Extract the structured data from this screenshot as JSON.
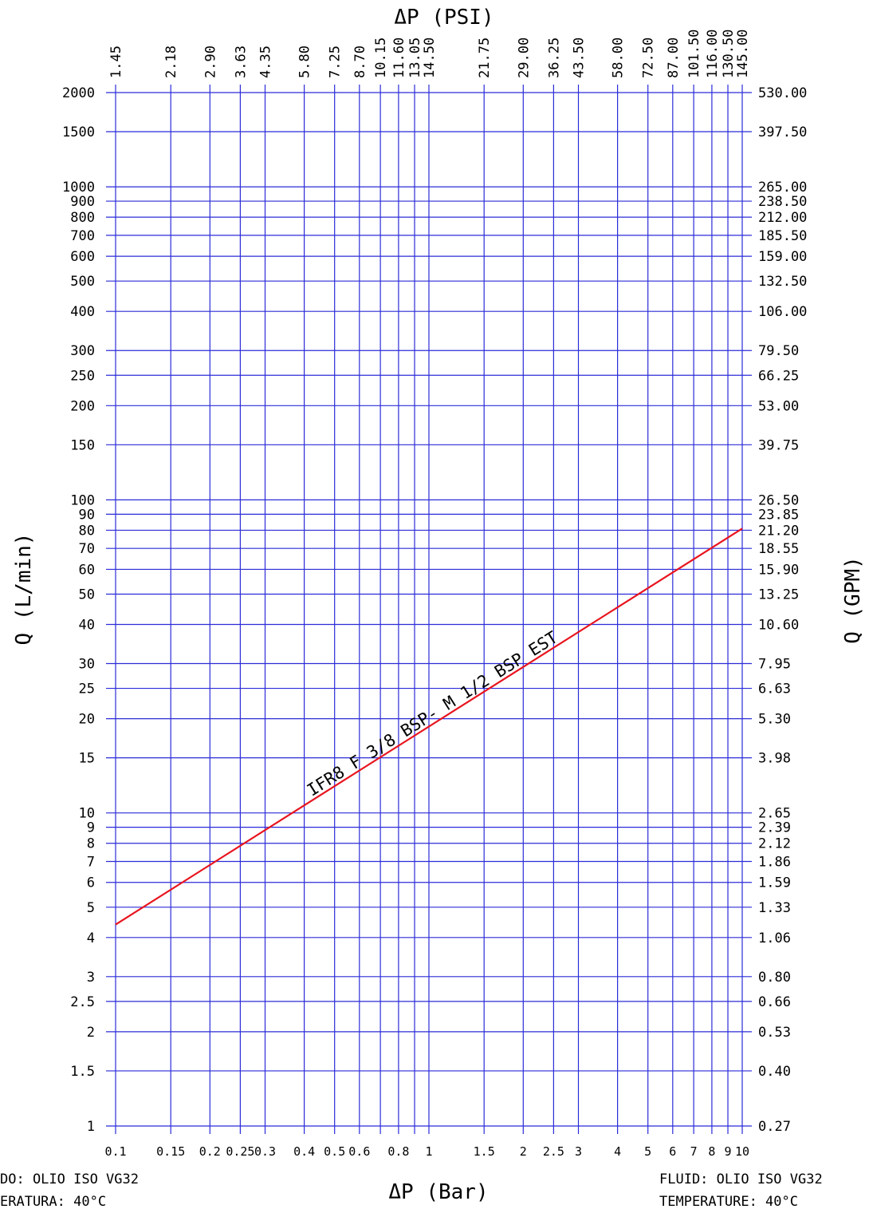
{
  "chart_data": {
    "type": "line",
    "title_top": "ΔP (PSI)",
    "xlabel": "ΔP (Bar)",
    "ylabel_left": "Q (L/min)",
    "ylabel_right": "Q (GPM)",
    "x_scale": "log",
    "y_scale": "log",
    "xlim": [
      0.1,
      10
    ],
    "ylim": [
      1,
      2000
    ],
    "grid": true,
    "colors": {
      "grid": "#2b2bd9",
      "axis": "#2b2bd9",
      "series": "#e8141e"
    },
    "x_ticks_bar": [
      {
        "v": 0.1,
        "label": "0.1"
      },
      {
        "v": 0.15,
        "label": "0.15"
      },
      {
        "v": 0.2,
        "label": "0.2"
      },
      {
        "v": 0.25,
        "label": "0.25"
      },
      {
        "v": 0.3,
        "label": "0.3"
      },
      {
        "v": 0.4,
        "label": "0.4"
      },
      {
        "v": 0.5,
        "label": "0.5"
      },
      {
        "v": 0.6,
        "label": "0.6"
      },
      {
        "v": 0.7,
        "label": ""
      },
      {
        "v": 0.8,
        "label": "0.8"
      },
      {
        "v": 0.9,
        "label": ""
      },
      {
        "v": 1,
        "label": "1"
      },
      {
        "v": 1.5,
        "label": "1.5"
      },
      {
        "v": 2,
        "label": "2"
      },
      {
        "v": 2.5,
        "label": "2.5"
      },
      {
        "v": 3,
        "label": "3"
      },
      {
        "v": 4,
        "label": "4"
      },
      {
        "v": 5,
        "label": "5"
      },
      {
        "v": 6,
        "label": "6"
      },
      {
        "v": 7,
        "label": "7"
      },
      {
        "v": 8,
        "label": "8"
      },
      {
        "v": 9,
        "label": "9"
      },
      {
        "v": 10,
        "label": "10"
      }
    ],
    "x_ticks_psi": [
      {
        "v": 0.1,
        "label": "1.45"
      },
      {
        "v": 0.15,
        "label": "2.18"
      },
      {
        "v": 0.2,
        "label": "2.90"
      },
      {
        "v": 0.25,
        "label": "3.63"
      },
      {
        "v": 0.3,
        "label": "4.35"
      },
      {
        "v": 0.4,
        "label": "5.80"
      },
      {
        "v": 0.5,
        "label": "7.25"
      },
      {
        "v": 0.6,
        "label": "8.70"
      },
      {
        "v": 0.7,
        "label": "10.15"
      },
      {
        "v": 0.8,
        "label": "11.60"
      },
      {
        "v": 0.9,
        "label": "13.05"
      },
      {
        "v": 1,
        "label": "14.50"
      },
      {
        "v": 1.5,
        "label": "21.75"
      },
      {
        "v": 2,
        "label": "29.00"
      },
      {
        "v": 2.5,
        "label": "36.25"
      },
      {
        "v": 3,
        "label": "43.50"
      },
      {
        "v": 4,
        "label": "58.00"
      },
      {
        "v": 5,
        "label": "72.50"
      },
      {
        "v": 6,
        "label": "87.00"
      },
      {
        "v": 7,
        "label": "101.50"
      },
      {
        "v": 8,
        "label": "116.00"
      },
      {
        "v": 9,
        "label": "130.50"
      },
      {
        "v": 10,
        "label": "145.00"
      }
    ],
    "y_ticks": [
      {
        "v": 1,
        "left": "1",
        "right": "0.27"
      },
      {
        "v": 1.5,
        "left": "1.5",
        "right": "0.40"
      },
      {
        "v": 2,
        "left": "2",
        "right": "0.53"
      },
      {
        "v": 2.5,
        "left": "2.5",
        "right": "0.66"
      },
      {
        "v": 3,
        "left": "3",
        "right": "0.80"
      },
      {
        "v": 4,
        "left": "4",
        "right": "1.06"
      },
      {
        "v": 5,
        "left": "5",
        "right": "1.33"
      },
      {
        "v": 6,
        "left": "6",
        "right": "1.59"
      },
      {
        "v": 7,
        "left": "7",
        "right": "1.86"
      },
      {
        "v": 8,
        "left": "8",
        "right": "2.12"
      },
      {
        "v": 9,
        "left": "9",
        "right": "2.39"
      },
      {
        "v": 10,
        "left": "10",
        "right": "2.65"
      },
      {
        "v": 15,
        "left": "15",
        "right": "3.98"
      },
      {
        "v": 20,
        "left": "20",
        "right": "5.30"
      },
      {
        "v": 25,
        "left": "25",
        "right": "6.63"
      },
      {
        "v": 30,
        "left": "30",
        "right": "7.95"
      },
      {
        "v": 40,
        "left": "40",
        "right": "10.60"
      },
      {
        "v": 50,
        "left": "50",
        "right": "13.25"
      },
      {
        "v": 60,
        "left": "60",
        "right": "15.90"
      },
      {
        "v": 70,
        "left": "70",
        "right": "18.55"
      },
      {
        "v": 80,
        "left": "80",
        "right": "21.20"
      },
      {
        "v": 90,
        "left": "90",
        "right": "23.85"
      },
      {
        "v": 100,
        "left": "100",
        "right": "26.50"
      },
      {
        "v": 150,
        "left": "150",
        "right": "39.75"
      },
      {
        "v": 200,
        "left": "200",
        "right": "53.00"
      },
      {
        "v": 250,
        "left": "250",
        "right": "66.25"
      },
      {
        "v": 300,
        "left": "300",
        "right": "79.50"
      },
      {
        "v": 400,
        "left": "400",
        "right": "106.00"
      },
      {
        "v": 500,
        "left": "500",
        "right": "132.50"
      },
      {
        "v": 600,
        "left": "600",
        "right": "159.00"
      },
      {
        "v": 700,
        "left": "700",
        "right": "185.50"
      },
      {
        "v": 800,
        "left": "800",
        "right": "212.00"
      },
      {
        "v": 900,
        "left": "900",
        "right": "238.50"
      },
      {
        "v": 1000,
        "left": "1000",
        "right": "265.00"
      },
      {
        "v": 1500,
        "left": "1500",
        "right": "397.50"
      },
      {
        "v": 2000,
        "left": "2000",
        "right": "530.00"
      }
    ],
    "series": [
      {
        "name": "IFR8 F 3/8 BSP- M 1/2 BSP EST",
        "x": [
          0.1,
          10
        ],
        "y": [
          4.4,
          81
        ]
      }
    ]
  },
  "notes": {
    "left_line1": "DO: OLIO ISO VG32",
    "left_line2": "ERATURA: 40°C",
    "right_line1": "FLUID: OLIO ISO VG32",
    "right_line2": "TEMPERATURE: 40°C"
  }
}
